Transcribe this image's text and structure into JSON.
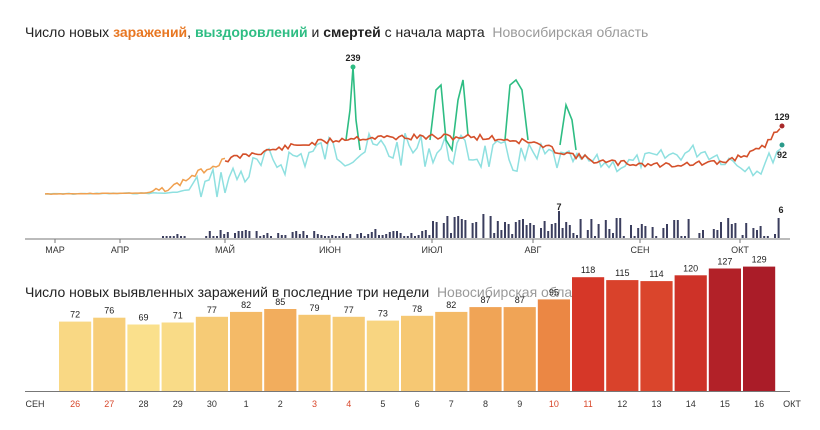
{
  "chart_top": {
    "title_parts": [
      "Число новых ",
      "заражений",
      ", ",
      "выздоровлений",
      " и ",
      "смертей",
      " с начала марта"
    ],
    "region": "Новосибирская область",
    "month_labels": [
      "МАР",
      "АПР",
      "МАЙ",
      "ИЮН",
      "ИЮЛ",
      "АВГ",
      "СЕН",
      "ОКТ"
    ],
    "annotations": {
      "recoveries_peak": "239",
      "infections_last": "129",
      "recoveries_last": "92",
      "deaths_peak": "7",
      "deaths_last": "6"
    },
    "colors": {
      "infections": "#d4502a",
      "infections_early": "#f0a050",
      "recoveries_spike": "#2ebd83",
      "recoveries": "#8fe0e0",
      "deaths": "#3b3e5e"
    }
  },
  "chart_data": {
    "type": "bar",
    "title": "Число новых выявленных заражений в последние три недели",
    "subtitle": "Новосибирская область",
    "categories": [
      "26",
      "27",
      "28",
      "29",
      "30",
      "1",
      "2",
      "3",
      "4",
      "5",
      "6",
      "7",
      "8",
      "9",
      "10",
      "11",
      "12",
      "13",
      "14",
      "15",
      "16"
    ],
    "values": [
      72,
      76,
      69,
      71,
      77,
      82,
      85,
      79,
      77,
      73,
      78,
      82,
      87,
      87,
      95,
      118,
      115,
      114,
      120,
      127,
      129
    ],
    "x_start_label": "СЕН",
    "x_end_label": "ОКТ",
    "weekend_categories": [
      "26",
      "27",
      "3",
      "4",
      "10",
      "11"
    ],
    "ylim": [
      0,
      140
    ],
    "label_colors": {
      "weekday": "#333333",
      "weekend": "#d8472b"
    }
  }
}
